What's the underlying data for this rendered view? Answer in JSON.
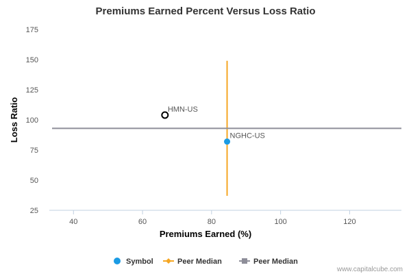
{
  "chart_data": {
    "type": "scatter",
    "title": "Premiums Earned Percent Versus Loss Ratio",
    "xlabel": "Premiums Earned (%)",
    "ylabel": "Loss Ratio",
    "xlim": [
      33,
      135
    ],
    "ylim": [
      25,
      175
    ],
    "x_ticks": [
      40,
      60,
      80,
      100,
      120
    ],
    "y_ticks": [
      25,
      50,
      75,
      100,
      125,
      150,
      175
    ],
    "grid": false,
    "legend_placement": "bottom",
    "points": [
      {
        "label": "HMN-US",
        "x": 66.5,
        "y": 104,
        "style": "hollow",
        "color": "#000000"
      },
      {
        "label": "NGHC-US",
        "x": 84.5,
        "y": 82,
        "style": "filled",
        "color": "#1b9be4"
      }
    ],
    "peer_median_vertical": {
      "x": 84.5,
      "y_range": [
        37,
        149
      ],
      "color": "#f5a623"
    },
    "peer_median_horizontal": {
      "y": 93,
      "color": "#8e8e99"
    },
    "legend": [
      {
        "name": "Symbol",
        "marker": "circle",
        "color": "#1b9be4"
      },
      {
        "name": "Peer Median",
        "marker": "diamond-line",
        "color": "#f5a623"
      },
      {
        "name": "Peer Median",
        "marker": "square-line",
        "color": "#8e8e99"
      }
    ]
  },
  "footer": {
    "source": "www.capitalcube.com"
  },
  "colors": {
    "axis": "#c0d0e0"
  }
}
